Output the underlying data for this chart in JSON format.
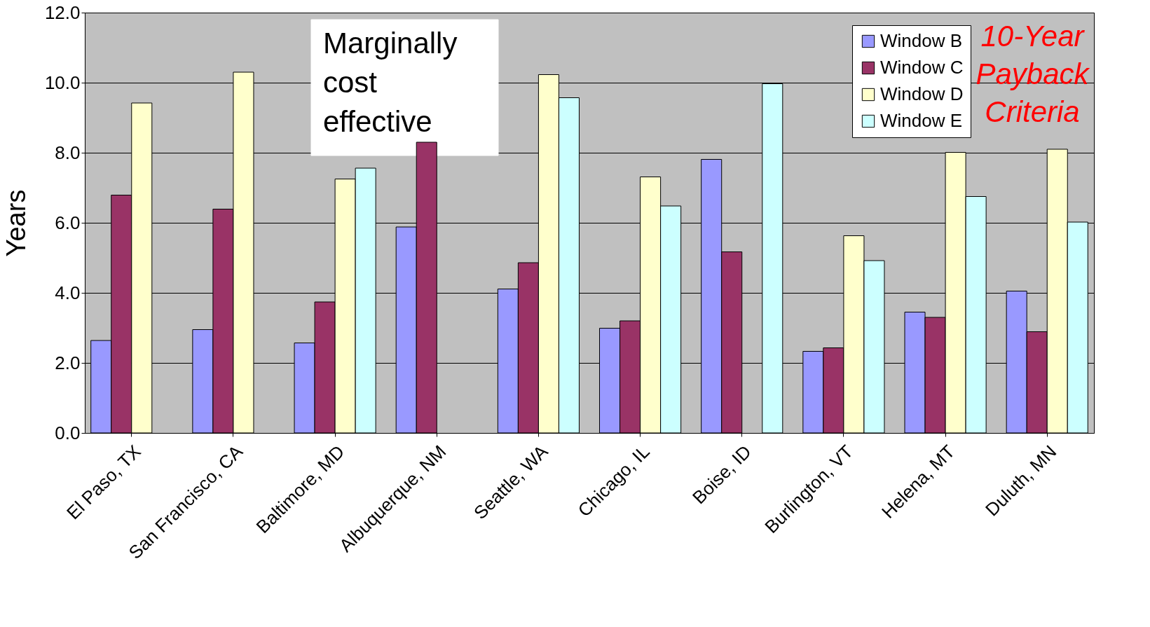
{
  "chart_data": {
    "type": "bar",
    "ylabel": "Years",
    "categories": [
      "El Paso, TX",
      "San Francisco, CA",
      "Baltimore, MD",
      "Albuquerque, NM",
      "Seattle, WA",
      "Chicago, IL",
      "Boise, ID",
      "Burlington, VT",
      "Helena, MT",
      "Duluth, MN"
    ],
    "series": [
      {
        "name": "Window B",
        "color": "#9999ff",
        "values": [
          2.64,
          2.95,
          2.57,
          5.88,
          4.11,
          2.99,
          7.81,
          2.33,
          3.45,
          4.05
        ]
      },
      {
        "name": "Window C",
        "color": "#993366",
        "values": [
          6.79,
          6.39,
          3.74,
          8.3,
          4.86,
          3.2,
          5.17,
          2.43,
          3.3,
          2.89
        ]
      },
      {
        "name": "Window D",
        "color": "#ffffcc",
        "values": [
          9.42,
          10.3,
          7.25,
          null,
          10.23,
          7.31,
          null,
          5.63,
          8.01,
          8.1
        ]
      },
      {
        "name": "Window E",
        "color": "#ccffff",
        "values": [
          null,
          null,
          7.56,
          null,
          9.57,
          6.48,
          9.97,
          4.92,
          6.75,
          6.02
        ]
      }
    ],
    "ylim": [
      0,
      12
    ],
    "yticks": [
      {
        "value": 0,
        "label": "0.0"
      },
      {
        "value": 2,
        "label": "2.0"
      },
      {
        "value": 4,
        "label": "4.0"
      },
      {
        "value": 6,
        "label": "6.0"
      },
      {
        "value": 8,
        "label": "8.0"
      },
      {
        "value": 10,
        "label": "10.0"
      },
      {
        "value": 12,
        "label": "12.0"
      }
    ],
    "grid": "y",
    "legend": "top right",
    "annotations": [
      "Marginally cost effective",
      "10-Year Payback Criteria"
    ]
  }
}
